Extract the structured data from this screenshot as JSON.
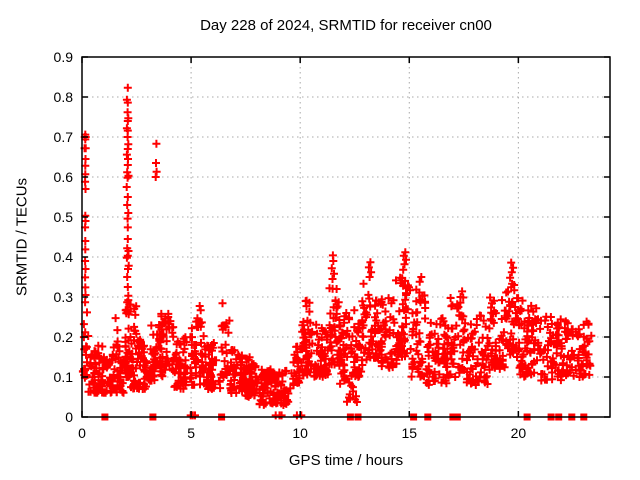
{
  "window": {
    "title": "Day 228 of 2024, SRMTID for receiver cn00"
  },
  "chart_data": {
    "type": "scatter",
    "title": "Day 228 of 2024, SRMTID for receiver cn00",
    "xlabel": "GPS time / hours",
    "ylabel": "SRMTID / TECUs",
    "xlim": [
      0,
      24.2
    ],
    "ylim": [
      0,
      0.9
    ],
    "xticks": [
      [
        0,
        "0"
      ],
      [
        5,
        "5"
      ],
      [
        10,
        "10"
      ],
      [
        15,
        "15"
      ],
      [
        20,
        "20"
      ]
    ],
    "yticks": [
      [
        0,
        "0"
      ],
      [
        0.1,
        "0.1"
      ],
      [
        0.2,
        "0.2"
      ],
      [
        0.3,
        "0.3"
      ],
      [
        0.4,
        "0.4"
      ],
      [
        0.5,
        "0.5"
      ],
      [
        0.6,
        "0.6"
      ],
      [
        0.7,
        "0.7"
      ],
      [
        0.8,
        "0.8"
      ],
      [
        0.9,
        "0.9"
      ]
    ],
    "grid": true,
    "legend": "none",
    "marker": "plus",
    "colors": {
      "series": "#ff0000",
      "axis": "#000000",
      "grid": "#a8a8a8",
      "background": "#ffffff"
    },
    "series_name": "SRMTID",
    "band_clusters_format": "[x_start_h, x_end_h, y_min_TECU, y_max_TECU, point_count] - dense scatter band envelopes read from the plot",
    "band_clusters": [
      [
        0.05,
        0.3,
        0.08,
        0.28,
        22
      ],
      [
        0.3,
        1.0,
        0.06,
        0.18,
        60
      ],
      [
        1.0,
        1.9,
        0.06,
        0.17,
        65
      ],
      [
        1.45,
        1.65,
        0.17,
        0.25,
        6
      ],
      [
        1.95,
        2.25,
        0.1,
        0.3,
        40
      ],
      [
        2.25,
        3.0,
        0.07,
        0.2,
        55
      ],
      [
        2.3,
        2.5,
        0.2,
        0.28,
        7
      ],
      [
        3.0,
        3.6,
        0.09,
        0.24,
        40
      ],
      [
        3.6,
        4.2,
        0.1,
        0.26,
        48
      ],
      [
        4.2,
        5.0,
        0.07,
        0.2,
        52
      ],
      [
        5.0,
        5.6,
        0.08,
        0.24,
        42
      ],
      [
        5.3,
        5.5,
        0.22,
        0.28,
        6
      ],
      [
        5.6,
        6.4,
        0.07,
        0.2,
        50
      ],
      [
        6.4,
        6.75,
        0.1,
        0.3,
        24
      ],
      [
        6.75,
        7.5,
        0.06,
        0.17,
        55
      ],
      [
        7.5,
        8.1,
        0.05,
        0.15,
        50
      ],
      [
        8.1,
        9.6,
        0.03,
        0.12,
        105
      ],
      [
        9.6,
        10.1,
        0.08,
        0.18,
        32
      ],
      [
        10.1,
        10.9,
        0.1,
        0.26,
        55
      ],
      [
        10.25,
        10.55,
        0.24,
        0.3,
        6
      ],
      [
        10.9,
        11.35,
        0.1,
        0.24,
        38
      ],
      [
        11.35,
        11.75,
        0.13,
        0.33,
        38
      ],
      [
        11.75,
        12.3,
        0.08,
        0.26,
        40
      ],
      [
        12.15,
        12.6,
        0.03,
        0.08,
        10
      ],
      [
        12.3,
        12.85,
        0.1,
        0.28,
        38
      ],
      [
        12.85,
        13.6,
        0.14,
        0.34,
        52
      ],
      [
        13.6,
        14.4,
        0.12,
        0.3,
        52
      ],
      [
        14.4,
        15.1,
        0.15,
        0.36,
        52
      ],
      [
        15.1,
        15.8,
        0.1,
        0.32,
        46
      ],
      [
        15.8,
        16.8,
        0.08,
        0.25,
        65
      ],
      [
        16.8,
        17.6,
        0.1,
        0.3,
        50
      ],
      [
        17.6,
        18.7,
        0.08,
        0.26,
        65
      ],
      [
        18.7,
        19.4,
        0.12,
        0.3,
        48
      ],
      [
        19.4,
        20.05,
        0.15,
        0.34,
        48
      ],
      [
        20.05,
        21.0,
        0.1,
        0.3,
        65
      ],
      [
        21.0,
        22.0,
        0.09,
        0.26,
        65
      ],
      [
        22.0,
        23.35,
        0.1,
        0.24,
        78
      ]
    ],
    "outlier_points": [
      [
        0.14,
        0.287
      ],
      [
        0.16,
        0.305
      ],
      [
        0.15,
        0.324
      ],
      [
        0.14,
        0.349
      ],
      [
        0.16,
        0.37
      ],
      [
        0.14,
        0.39
      ],
      [
        0.15,
        0.419
      ],
      [
        0.15,
        0.44
      ],
      [
        0.14,
        0.474
      ],
      [
        0.16,
        0.49
      ],
      [
        0.15,
        0.503
      ],
      [
        0.16,
        0.57
      ],
      [
        0.14,
        0.588
      ],
      [
        0.15,
        0.607
      ],
      [
        0.15,
        0.628
      ],
      [
        0.16,
        0.645
      ],
      [
        0.12,
        0.672
      ],
      [
        0.17,
        0.672
      ],
      [
        0.13,
        0.7
      ],
      [
        0.15,
        0.7
      ],
      [
        0.17,
        0.7
      ],
      [
        0.15,
        0.694
      ],
      [
        0.15,
        0.706
      ],
      [
        2.1,
        0.267
      ],
      [
        2.07,
        0.287
      ],
      [
        2.12,
        0.303
      ],
      [
        2.1,
        0.325
      ],
      [
        2.07,
        0.35
      ],
      [
        2.11,
        0.37
      ],
      [
        2.14,
        0.378
      ],
      [
        2.06,
        0.398
      ],
      [
        2.1,
        0.403
      ],
      [
        2.13,
        0.415
      ],
      [
        2.07,
        0.422
      ],
      [
        2.1,
        0.445
      ],
      [
        2.1,
        0.474
      ],
      [
        2.09,
        0.496
      ],
      [
        2.12,
        0.51
      ],
      [
        2.07,
        0.53
      ],
      [
        2.1,
        0.55
      ],
      [
        2.05,
        0.575
      ],
      [
        2.09,
        0.598
      ],
      [
        2.13,
        0.603
      ],
      [
        2.07,
        0.612
      ],
      [
        2.1,
        0.63
      ],
      [
        2.11,
        0.645
      ],
      [
        2.06,
        0.656
      ],
      [
        2.1,
        0.67
      ],
      [
        2.12,
        0.682
      ],
      [
        2.09,
        0.7
      ],
      [
        2.1,
        0.716
      ],
      [
        2.06,
        0.722
      ],
      [
        2.1,
        0.74
      ],
      [
        2.12,
        0.747
      ],
      [
        2.09,
        0.762
      ],
      [
        2.1,
        0.786
      ],
      [
        2.06,
        0.793
      ],
      [
        2.1,
        0.823
      ],
      [
        3.38,
        0.6
      ],
      [
        3.42,
        0.613
      ],
      [
        3.39,
        0.635
      ],
      [
        3.41,
        0.683
      ],
      [
        11.48,
        0.345
      ],
      [
        11.55,
        0.358
      ],
      [
        11.45,
        0.372
      ],
      [
        11.52,
        0.39
      ],
      [
        11.5,
        0.404
      ],
      [
        13.18,
        0.35
      ],
      [
        13.25,
        0.362
      ],
      [
        13.15,
        0.374
      ],
      [
        13.22,
        0.387
      ],
      [
        14.72,
        0.368
      ],
      [
        14.78,
        0.382
      ],
      [
        14.85,
        0.393
      ],
      [
        14.75,
        0.403
      ],
      [
        14.82,
        0.412
      ],
      [
        15.48,
        0.338
      ],
      [
        15.55,
        0.35
      ],
      [
        17.35,
        0.3
      ],
      [
        17.42,
        0.314
      ],
      [
        19.62,
        0.348
      ],
      [
        19.7,
        0.362
      ],
      [
        19.76,
        0.373
      ],
      [
        19.67,
        0.386
      ]
    ],
    "baseline_squares_hours": [
      1.05,
      3.25,
      6.4,
      12.3,
      12.65,
      15.2,
      15.85,
      17.0,
      17.2,
      20.4,
      21.5,
      21.85,
      22.45,
      23.0
    ],
    "baseline_plus_hours": [
      4.98,
      5.08,
      5.18,
      8.88,
      9.05,
      9.15,
      9.85,
      10.05
    ]
  }
}
